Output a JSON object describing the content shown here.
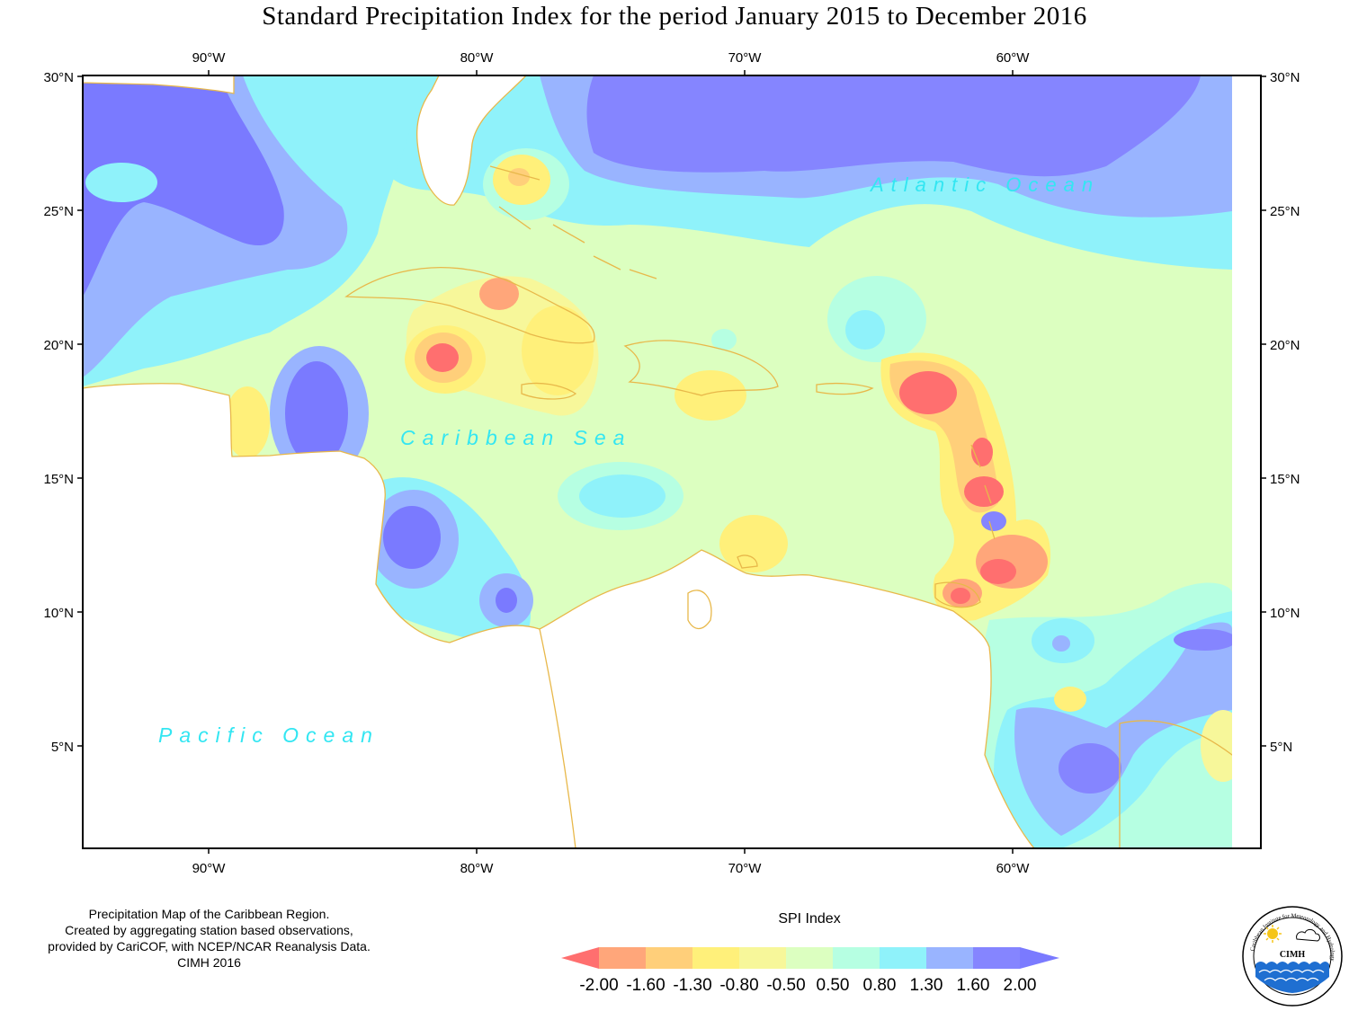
{
  "title": "Standard Precipitation Index for the period January 2015 to December 2016",
  "map": {
    "longitude_ticks": [
      "90°W",
      "80°W",
      "70°W",
      "60°W"
    ],
    "latitude_ticks": [
      "30°N",
      "25°N",
      "20°N",
      "15°N",
      "10°N",
      "5°N"
    ],
    "region_labels": {
      "atlantic": "Atlantic Ocean",
      "caribbean": "Caribbean Sea",
      "pacific": "Pacific Ocean"
    },
    "coastline_color": "#e8b84a"
  },
  "credit": {
    "line1": "Precipitation Map of the Caribbean Region.",
    "line2": "Created by aggregating station based observations,",
    "line3": "provided by CariCOF, with NCEP/NCAR Reanalysis Data.",
    "line4": "CIMH 2016"
  },
  "legend": {
    "title": "SPI Index",
    "labels": [
      "-2.00",
      "-1.60",
      "-1.30",
      "-0.80",
      "-0.50",
      "0.50",
      "0.80",
      "1.30",
      "1.60",
      "2.00"
    ],
    "colors": [
      "#ff6f6f",
      "#ffa67a",
      "#ffcf7a",
      "#fff07a",
      "#f7f79a",
      "#dcffc0",
      "#b6ffe2",
      "#8ff2fa",
      "#99b4ff",
      "#8585ff",
      "#7a7aff"
    ]
  },
  "logo": {
    "name": "CIMH",
    "ring_text": "Caribbean Institute for Meteorology and Hydrology"
  }
}
